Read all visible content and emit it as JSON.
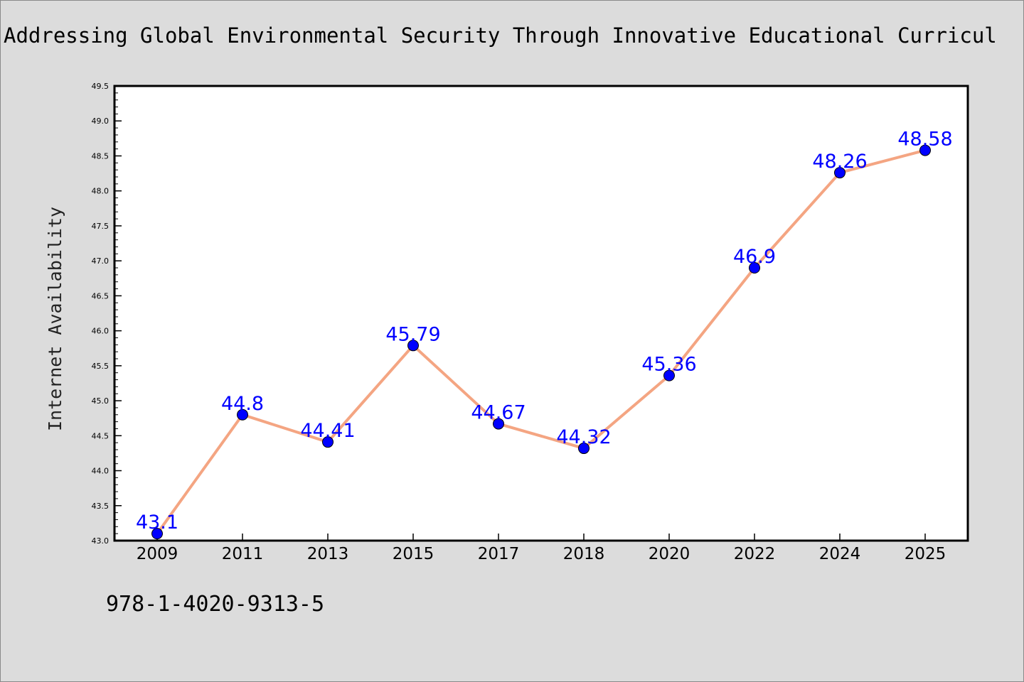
{
  "chart_data": {
    "type": "line",
    "title": "Addressing Global Environmental Security Through Innovative Educational Curricul",
    "xlabel": "",
    "ylabel": "Internet Availability",
    "categories": [
      "2009",
      "2011",
      "2013",
      "2015",
      "2017",
      "2018",
      "2020",
      "2022",
      "2024",
      "2025"
    ],
    "values": [
      43.1,
      44.8,
      44.41,
      45.79,
      44.67,
      44.32,
      45.36,
      46.9,
      48.26,
      48.58
    ],
    "data_labels": [
      "43.1",
      "44.8",
      "44.41",
      "45.79",
      "44.67",
      "44.32",
      "45.36",
      "46.9",
      "48.26",
      "48.58"
    ],
    "ylim": [
      43.0,
      49.5
    ],
    "yticks": [
      "43.0",
      "43.5",
      "44.0",
      "44.5",
      "45.0",
      "45.5",
      "46.0",
      "46.5",
      "47.0",
      "47.5",
      "48.0",
      "48.5",
      "49.0",
      "49.5"
    ],
    "grid": false,
    "legend": "none",
    "colors": {
      "line": "#f4a582",
      "marker": "#0000ff",
      "label": "#0000ff",
      "background": "#dcdcdc",
      "plot_background": "#ffffff"
    }
  },
  "footer": {
    "code": "978-1-4020-9313-5"
  }
}
